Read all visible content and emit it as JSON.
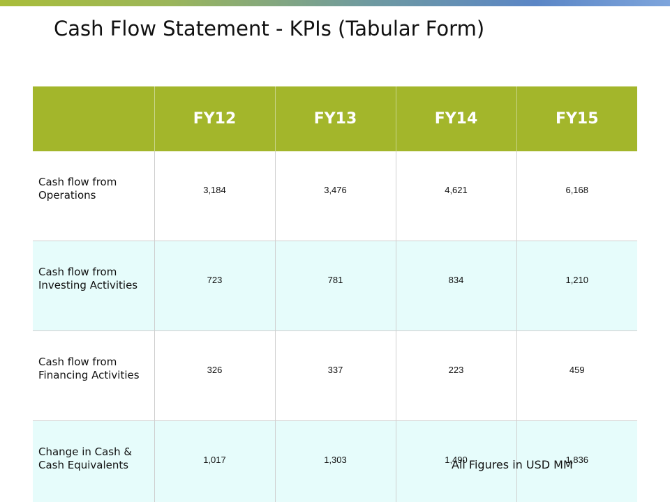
{
  "title": "Cash Flow Statement - KPIs (Tabular Form)",
  "table": {
    "header_corner": "",
    "columns": [
      "FY12",
      "FY13",
      "FY14",
      "FY15"
    ],
    "rows": [
      {
        "label": "Cash flow from Operations",
        "values": [
          "3,184",
          "3,476",
          "4,621",
          "6,168"
        ]
      },
      {
        "label": "Cash flow from Investing Activities",
        "values": [
          "723",
          "781",
          "834",
          "1,210"
        ]
      },
      {
        "label": "Cash flow from Financing Activities",
        "values": [
          "326",
          "337",
          "223",
          "459"
        ]
      },
      {
        "label": "Change in Cash & Cash Equivalents",
        "values": [
          "1,017",
          "1,303",
          "1,490",
          "1,836"
        ]
      }
    ]
  },
  "footnote": "All Figures in USD MM",
  "colors": {
    "header_bg": "#a3b62b",
    "alt_row_bg": "#e6fcfb",
    "header_text": "#ffffff"
  }
}
